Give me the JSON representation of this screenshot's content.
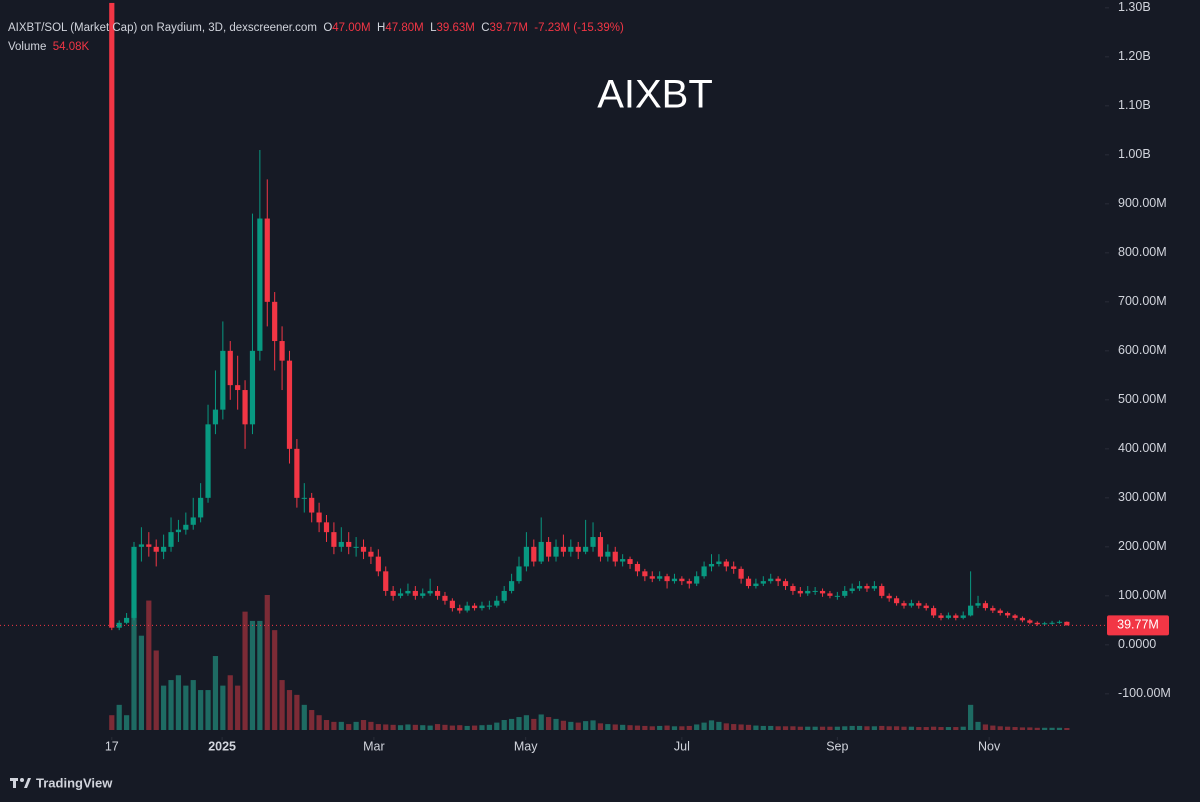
{
  "chart_data": {
    "type": "candlestick",
    "title": "AIXBT",
    "symbol": "AIXBT/SOL (Market Cap) on Raydium, 3D, dexscreener.com",
    "ohlc_legend": [
      {
        "key": "O",
        "value": {
          "value": 47,
          "label": "47.00M"
        }
      },
      {
        "key": "H",
        "value": {
          "value": 47.8,
          "label": "47.80M"
        }
      },
      {
        "key": "L",
        "value": {
          "value": 39.63,
          "label": "39.63M"
        }
      },
      {
        "key": "C",
        "value": {
          "value": 39.77,
          "label": "39.77M"
        }
      }
    ],
    "change": "-7.23M (-15.39%)",
    "volume_title": "Volume",
    "volume_last": {
      "value": 54.08,
      "label": "54.08K"
    },
    "last_price": {
      "value": 39.77,
      "label": "39.77M"
    },
    "colors": {
      "up": "#089981",
      "down": "#f23645",
      "up_volume": "#1e6b63",
      "down_volume": "#7c2b36"
    },
    "open": [
      1310,
      35,
      45,
      55,
      200,
      205,
      200,
      190,
      200,
      230,
      235,
      245,
      260,
      300,
      450,
      480,
      600,
      530,
      520,
      450,
      600,
      870,
      700,
      620,
      580,
      400,
      300,
      300,
      270,
      250,
      230,
      200,
      210,
      200,
      200,
      190,
      180,
      150,
      110,
      100,
      105,
      110,
      100,
      105,
      110,
      100,
      90,
      75,
      70,
      80,
      75,
      80,
      80,
      90,
      110,
      130,
      160,
      200,
      170,
      210,
      180,
      200,
      190,
      200,
      190,
      200,
      220,
      180,
      190,
      170,
      175,
      165,
      150,
      140,
      135,
      140,
      130,
      135,
      130,
      125,
      140,
      160,
      165,
      170,
      160,
      155,
      135,
      120,
      125,
      130,
      135,
      130,
      120,
      110,
      105,
      110,
      110,
      105,
      100,
      100,
      110,
      115,
      120,
      115,
      120,
      100,
      95,
      85,
      80,
      85,
      80,
      75,
      60,
      55,
      60,
      55,
      60,
      80,
      85,
      75,
      70,
      65,
      60,
      55,
      50,
      45,
      42,
      44,
      45,
      47
    ],
    "high": [
      1310,
      50,
      65,
      210,
      240,
      230,
      215,
      225,
      260,
      255,
      270,
      300,
      330,
      490,
      560,
      660,
      620,
      590,
      540,
      880,
      1010,
      950,
      720,
      650,
      600,
      420,
      330,
      310,
      290,
      265,
      250,
      240,
      230,
      220,
      215,
      200,
      195,
      160,
      120,
      115,
      125,
      120,
      115,
      135,
      120,
      108,
      95,
      82,
      88,
      85,
      88,
      90,
      100,
      120,
      145,
      180,
      230,
      215,
      260,
      220,
      215,
      225,
      215,
      210,
      255,
      250,
      230,
      205,
      200,
      185,
      180,
      170,
      155,
      150,
      150,
      145,
      145,
      140,
      135,
      150,
      170,
      185,
      185,
      175,
      170,
      160,
      140,
      135,
      140,
      145,
      140,
      135,
      125,
      118,
      120,
      118,
      115,
      110,
      108,
      120,
      125,
      130,
      125,
      130,
      125,
      105,
      100,
      90,
      92,
      90,
      85,
      80,
      65,
      66,
      64,
      68,
      150,
      100,
      90,
      80,
      74,
      68,
      63,
      58,
      53,
      48,
      47,
      49,
      50,
      47.8
    ],
    "low": [
      30,
      30,
      42,
      50,
      170,
      180,
      160,
      175,
      190,
      210,
      225,
      235,
      250,
      290,
      430,
      460,
      500,
      480,
      400,
      430,
      580,
      650,
      560,
      520,
      370,
      280,
      270,
      250,
      230,
      210,
      185,
      190,
      185,
      180,
      175,
      165,
      140,
      100,
      90,
      95,
      100,
      92,
      95,
      100,
      92,
      82,
      68,
      64,
      66,
      70,
      70,
      72,
      76,
      85,
      105,
      125,
      150,
      160,
      165,
      170,
      170,
      180,
      180,
      175,
      185,
      190,
      170,
      170,
      160,
      160,
      155,
      140,
      130,
      128,
      130,
      115,
      125,
      122,
      115,
      120,
      135,
      150,
      160,
      150,
      145,
      125,
      115,
      115,
      120,
      125,
      120,
      112,
      102,
      98,
      100,
      102,
      98,
      95,
      92,
      96,
      105,
      110,
      108,
      110,
      95,
      88,
      80,
      74,
      76,
      74,
      70,
      55,
      50,
      52,
      50,
      52,
      58,
      75,
      70,
      65,
      60,
      55,
      50,
      46,
      42,
      39,
      40,
      41,
      43,
      39.63
    ],
    "close": [
      35,
      45,
      55,
      200,
      205,
      200,
      190,
      200,
      230,
      235,
      245,
      260,
      300,
      450,
      480,
      600,
      530,
      520,
      450,
      600,
      870,
      700,
      620,
      580,
      400,
      300,
      300,
      270,
      250,
      230,
      200,
      210,
      200,
      200,
      190,
      180,
      150,
      110,
      100,
      105,
      110,
      100,
      105,
      110,
      100,
      90,
      75,
      70,
      80,
      75,
      80,
      80,
      90,
      110,
      130,
      160,
      200,
      170,
      210,
      180,
      200,
      190,
      200,
      190,
      200,
      220,
      180,
      190,
      170,
      175,
      165,
      150,
      140,
      135,
      140,
      130,
      135,
      130,
      125,
      140,
      160,
      165,
      170,
      160,
      155,
      135,
      120,
      125,
      130,
      135,
      130,
      120,
      110,
      105,
      110,
      110,
      105,
      100,
      100,
      110,
      115,
      120,
      115,
      120,
      100,
      95,
      85,
      80,
      85,
      80,
      75,
      60,
      55,
      60,
      55,
      60,
      80,
      85,
      75,
      70,
      65,
      60,
      55,
      50,
      45,
      42,
      44,
      45,
      47,
      39.77
    ],
    "volume": [
      400,
      680,
      400,
      3200,
      2550,
      3500,
      2150,
      1200,
      1350,
      1480,
      1200,
      1350,
      1080,
      1080,
      2000,
      1200,
      1480,
      1200,
      3200,
      2950,
      2950,
      3650,
      2700,
      1350,
      1080,
      950,
      680,
      540,
      400,
      270,
      220,
      220,
      160,
      220,
      270,
      220,
      160,
      150,
      140,
      130,
      150,
      140,
      130,
      120,
      160,
      140,
      120,
      130,
      110,
      120,
      130,
      140,
      200,
      270,
      300,
      350,
      400,
      300,
      420,
      350,
      300,
      250,
      220,
      200,
      240,
      260,
      180,
      160,
      150,
      140,
      130,
      120,
      110,
      100,
      110,
      120,
      100,
      100,
      110,
      150,
      200,
      260,
      220,
      180,
      160,
      150,
      140,
      120,
      110,
      110,
      100,
      100,
      100,
      90,
      90,
      90,
      90,
      90,
      90,
      100,
      110,
      110,
      100,
      100,
      110,
      100,
      100,
      90,
      90,
      80,
      80,
      90,
      80,
      80,
      80,
      90,
      680,
      220,
      150,
      120,
      100,
      90,
      80,
      70,
      70,
      60,
      60,
      60,
      60,
      54.08
    ],
    "ylim": [
      -184,
      1316
    ],
    "yticks": [
      {
        "value": -100,
        "label": "-100.00M"
      },
      {
        "value": 0,
        "label": "0.0000"
      },
      {
        "value": 100,
        "label": "100.00M"
      },
      {
        "value": 200,
        "label": "200.00M"
      },
      {
        "value": 300,
        "label": "300.00M"
      },
      {
        "value": 400,
        "label": "400.00M"
      },
      {
        "value": 500,
        "label": "500.00M"
      },
      {
        "value": 600,
        "label": "600.00M"
      },
      {
        "value": 700,
        "label": "700.00M"
      },
      {
        "value": 800,
        "label": "800.00M"
      },
      {
        "value": 900,
        "label": "900.00M"
      },
      {
        "value": 1000,
        "label": "1.00B"
      },
      {
        "value": 1100,
        "label": "1.10B"
      },
      {
        "value": 1200,
        "label": "1.20B"
      },
      {
        "value": 1300,
        "label": "1.30B"
      }
    ],
    "xlim": [
      -15.1,
      132.8
    ],
    "xticks": [
      {
        "value": 0,
        "label": "17"
      },
      {
        "value": 14.9,
        "label": "2025"
      },
      {
        "value": 35.4,
        "label": "Mar"
      },
      {
        "value": 55.9,
        "label": "May"
      },
      {
        "value": 77,
        "label": "Jul"
      },
      {
        "value": 98,
        "label": "Sep"
      },
      {
        "value": 118.5,
        "label": "Nov"
      }
    ],
    "footer": "TradingView"
  }
}
